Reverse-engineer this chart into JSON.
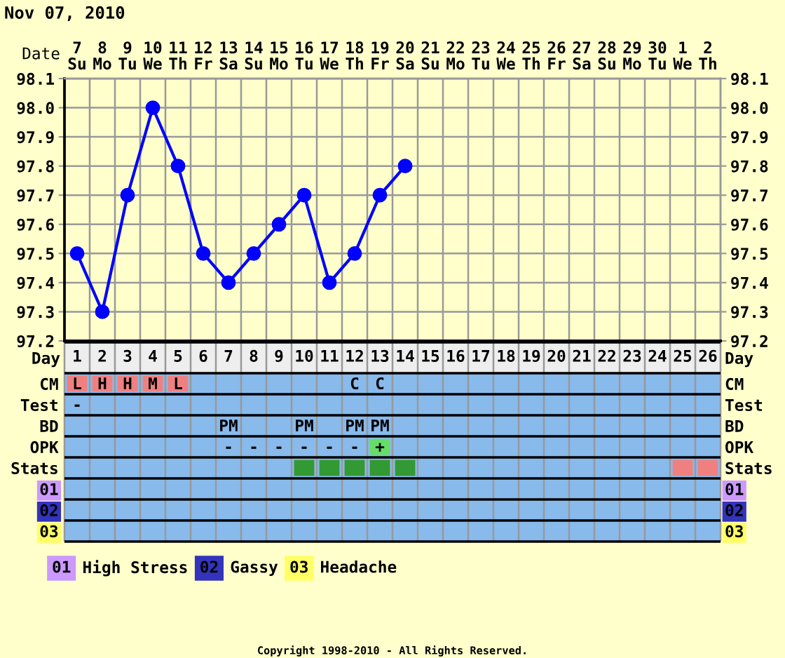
{
  "chart_data": [
    {
      "type": "line",
      "title": "Nov 07, 2010",
      "xlabel": "Date",
      "categories": [
        "7\nSu",
        "8\nMo",
        "9\nTu",
        "10\nWe",
        "11\nTh",
        "12\nFr",
        "13\nSa",
        "14\nSu",
        "15\nMo",
        "16\nTu",
        "17\nWe",
        "18\nTh",
        "19\nFr",
        "20\nSa",
        "21\nSu",
        "22\nMo",
        "23\nTu",
        "24\nWe",
        "25\nTh",
        "26\nFr",
        "27\nSa",
        "28\nSu",
        "29\nMo",
        "30\nTu",
        "1\nWe",
        "2\nTh"
      ],
      "values": [
        97.5,
        97.3,
        97.7,
        98.0,
        97.8,
        97.5,
        97.4,
        97.5,
        97.6,
        97.7,
        97.4,
        97.5,
        97.7,
        97.8,
        null,
        null,
        null,
        null,
        null,
        null,
        null,
        null,
        null,
        null,
        null,
        null
      ],
      "color": "#0000ff",
      "ylim": [
        97.2,
        98.1
      ],
      "yticks": [
        97.2,
        97.3,
        97.4,
        97.5,
        97.6,
        97.7,
        97.8,
        97.9,
        {
          "value": 98,
          "label": "98.0"
        },
        98.1
      ],
      "y2lim": [
        97.2,
        98.1
      ],
      "y2ticks": [
        97.2,
        97.3,
        97.4,
        97.5,
        97.6,
        97.7,
        97.8,
        97.9,
        {
          "value": 98,
          "label": "98.0"
        },
        98.1
      ],
      "grid": true,
      "marker": "circle",
      "line_style": "solid"
    },
    {
      "type": "heatmap",
      "xlabel": "Day",
      "categories": [
        "1",
        "2",
        "3",
        "4",
        "5",
        "6",
        "7",
        "8",
        "9",
        "10",
        "11",
        "12",
        "13",
        "14",
        "15",
        "16",
        "17",
        "18",
        "19",
        "20",
        "21",
        "22",
        "23",
        "24",
        "25",
        "26"
      ],
      "y_categories": [
        "CM",
        "Test",
        "BD",
        "OPK",
        "Stats",
        "01",
        "02",
        "03"
      ],
      "y2_categories": [
        "CM",
        "Test",
        "BD",
        "OPK",
        "Stats",
        "01",
        "02",
        "03"
      ],
      "color": "#88baec",
      "cells": [
        [
          null,
          null,
          null,
          null,
          null,
          null,
          null,
          null,
          null,
          null,
          null,
          null,
          null,
          null,
          null,
          null,
          null,
          null,
          null,
          null,
          null,
          null,
          null,
          null,
          null,
          null
        ],
        [
          null,
          null,
          null,
          null,
          null,
          null,
          null,
          null,
          null,
          null,
          null,
          null,
          null,
          null,
          null,
          null,
          null,
          null,
          null,
          null,
          null,
          null,
          null,
          null,
          null,
          null
        ],
        [
          null,
          null,
          null,
          null,
          null,
          null,
          null,
          null,
          null,
          null,
          null,
          null,
          null,
          null,
          null,
          null,
          null,
          null,
          null,
          null,
          null,
          null,
          null,
          null,
          null,
          null
        ],
        [
          null,
          null,
          null,
          null,
          null,
          null,
          null,
          null,
          null,
          null,
          null,
          null,
          null,
          null,
          null,
          null,
          null,
          null,
          null,
          null,
          null,
          null,
          null,
          null,
          null,
          null
        ],
        [
          null,
          null,
          null,
          null,
          null,
          null,
          null,
          null,
          null,
          null,
          null,
          null,
          null,
          null,
          null,
          null,
          null,
          null,
          null,
          null,
          null,
          null,
          null,
          null,
          null,
          null
        ],
        [
          null,
          null,
          null,
          null,
          null,
          null,
          null,
          null,
          null,
          null,
          null,
          null,
          null,
          null,
          null,
          null,
          null,
          null,
          null,
          null,
          null,
          null,
          null,
          null,
          null,
          null
        ],
        [
          null,
          null,
          null,
          null,
          null,
          null,
          null,
          null,
          null,
          null,
          null,
          null,
          null,
          null,
          null,
          null,
          null,
          null,
          null,
          null,
          null,
          null,
          null,
          null,
          null,
          null
        ],
        [
          null,
          null,
          null,
          null,
          null,
          null,
          null,
          null,
          null,
          null,
          null,
          null,
          null,
          null,
          null,
          null,
          null,
          null,
          null,
          null,
          null,
          null,
          null,
          null,
          null,
          null
        ]
      ],
      "cell_labels": [
        [
          "L",
          "H",
          "H",
          "M",
          "L",
          null,
          null,
          null,
          null,
          null,
          null,
          "C",
          "C",
          null,
          null,
          null,
          null,
          null,
          null,
          null,
          null,
          null,
          null,
          null,
          null,
          null
        ],
        [
          "-",
          null,
          null,
          null,
          null,
          null,
          null,
          null,
          null,
          null,
          null,
          null,
          null,
          null,
          null,
          null,
          null,
          null,
          null,
          null,
          null,
          null,
          null,
          null,
          null,
          null
        ],
        [
          null,
          null,
          null,
          null,
          null,
          null,
          "PM",
          null,
          null,
          "PM",
          null,
          "PM",
          "PM",
          null,
          null,
          null,
          null,
          null,
          null,
          null,
          null,
          null,
          null,
          null,
          null,
          null
        ],
        [
          null,
          null,
          null,
          null,
          null,
          null,
          "-",
          "-",
          "-",
          "-",
          "-",
          "-",
          "+",
          null,
          null,
          null,
          null,
          null,
          null,
          null,
          null,
          null,
          null,
          null,
          null,
          null
        ],
        [
          null,
          null,
          null,
          null,
          null,
          null,
          null,
          null,
          null,
          null,
          null,
          null,
          null,
          null,
          null,
          null,
          null,
          null,
          null,
          null,
          null,
          null,
          null,
          null,
          null,
          null
        ],
        [
          null,
          null,
          null,
          null,
          null,
          null,
          null,
          null,
          null,
          null,
          null,
          null,
          null,
          null,
          null,
          null,
          null,
          null,
          null,
          null,
          null,
          null,
          null,
          null,
          null,
          null
        ],
        [
          null,
          null,
          null,
          null,
          null,
          null,
          null,
          null,
          null,
          null,
          null,
          null,
          null,
          null,
          null,
          null,
          null,
          null,
          null,
          null,
          null,
          null,
          null,
          null,
          null,
          null
        ],
        [
          null,
          null,
          null,
          null,
          null,
          null,
          null,
          null,
          null,
          null,
          null,
          null,
          null,
          null,
          null,
          null,
          null,
          null,
          null,
          null,
          null,
          null,
          null,
          null,
          null,
          null
        ]
      ],
      "colors": [
        [
          "#f08080",
          "#f08080",
          "#f08080",
          "#f08080",
          "#f08080",
          null,
          null,
          null,
          null,
          null,
          null,
          null,
          null,
          null,
          null,
          null,
          null,
          null,
          null,
          null,
          null,
          null,
          null,
          null,
          null,
          null
        ],
        [
          null,
          null,
          null,
          null,
          null,
          null,
          null,
          null,
          null,
          null,
          null,
          null,
          null,
          null,
          null,
          null,
          null,
          null,
          null,
          null,
          null,
          null,
          null,
          null,
          null,
          null
        ],
        [
          null,
          null,
          null,
          null,
          null,
          null,
          null,
          null,
          null,
          null,
          null,
          null,
          null,
          null,
          null,
          null,
          null,
          null,
          null,
          null,
          null,
          null,
          null,
          null,
          null,
          null
        ],
        [
          null,
          null,
          null,
          null,
          null,
          null,
          null,
          null,
          null,
          null,
          null,
          null,
          "#66dd66",
          null,
          null,
          null,
          null,
          null,
          null,
          null,
          null,
          null,
          null,
          null,
          null,
          null
        ],
        [
          null,
          null,
          null,
          null,
          null,
          null,
          null,
          null,
          null,
          "#339933",
          "#339933",
          "#339933",
          "#339933",
          "#339933",
          null,
          null,
          null,
          null,
          null,
          null,
          null,
          null,
          null,
          null,
          "#f08080",
          "#f08080"
        ],
        [
          null,
          null,
          null,
          null,
          null,
          null,
          null,
          null,
          null,
          null,
          null,
          null,
          null,
          null,
          null,
          null,
          null,
          null,
          null,
          null,
          null,
          null,
          null,
          null,
          null,
          null
        ],
        [
          null,
          null,
          null,
          null,
          null,
          null,
          null,
          null,
          null,
          null,
          null,
          null,
          null,
          null,
          null,
          null,
          null,
          null,
          null,
          null,
          null,
          null,
          null,
          null,
          null,
          null
        ],
        [
          null,
          null,
          null,
          null,
          null,
          null,
          null,
          null,
          null,
          null,
          null,
          null,
          null,
          null,
          null,
          null,
          null,
          null,
          null,
          null,
          null,
          null,
          null,
          null,
          null,
          null
        ]
      ],
      "series": [
        {
          "name": "High Stress",
          "color": "#cc99ff",
          "values": [
            null,
            null,
            null,
            null,
            null,
            null,
            null,
            null,
            null,
            null,
            null,
            null,
            null,
            null,
            null,
            null,
            null,
            null,
            null,
            null,
            null,
            null,
            null,
            null,
            null,
            null
          ]
        },
        {
          "name": "Gassy",
          "color": "#3333bb",
          "values": [
            null,
            null,
            null,
            null,
            null,
            null,
            null,
            null,
            null,
            null,
            null,
            null,
            null,
            null,
            null,
            null,
            null,
            null,
            null,
            null,
            null,
            null,
            null,
            null,
            null,
            null
          ]
        },
        {
          "name": "Headache",
          "color": "#ffff66",
          "values": [
            null,
            null,
            null,
            null,
            null,
            null,
            null,
            null,
            null,
            null,
            null,
            null,
            null,
            null,
            null,
            null,
            null,
            null,
            null,
            null,
            null,
            null,
            null,
            null,
            null,
            null
          ]
        }
      ],
      "legend": "bottom left",
      "annotations": [
        "Copyright 1998-2010 - All Rights Reserved."
      ]
    }
  ]
}
